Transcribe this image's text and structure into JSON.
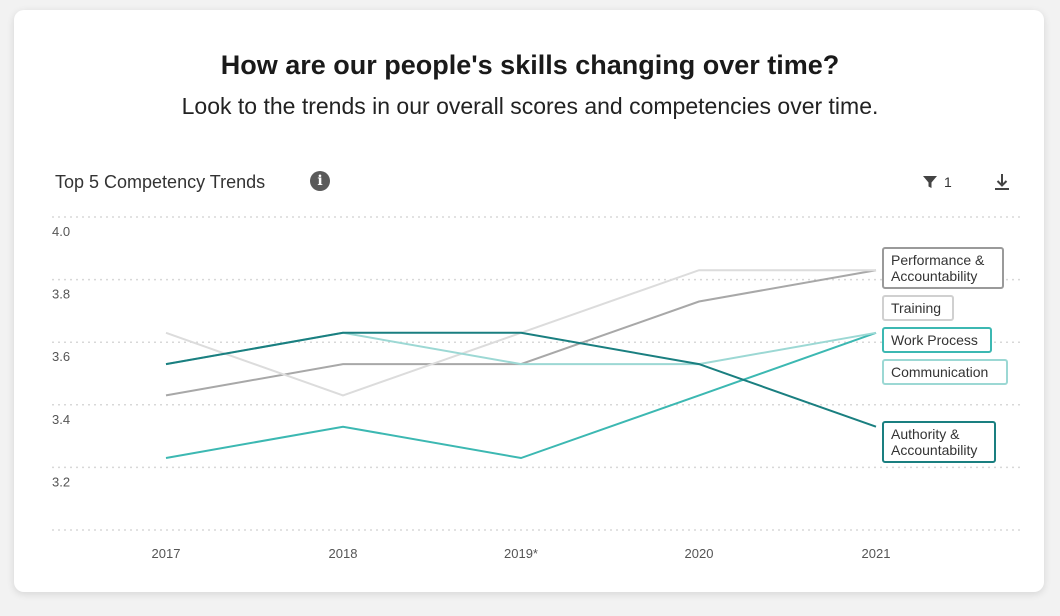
{
  "header": {
    "title": "How are our people's skills changing over time?",
    "subtitle": "Look to the trends in our overall scores and competencies over time."
  },
  "toolbar": {
    "chart_title": "Top 5 Competency Trends",
    "info_icon": "i",
    "filter_count": "1"
  },
  "icons": {
    "info": "info-icon",
    "filter": "filter-icon",
    "download": "download-icon"
  },
  "chart_data": {
    "type": "line",
    "x": [
      "2017",
      "2018",
      "2019*",
      "2020",
      "2021"
    ],
    "y_ticks": [
      "4.0",
      "3.8",
      "3.6",
      "3.4",
      "3.2"
    ],
    "ylim": [
      3.0,
      4.0
    ],
    "grid": true,
    "legend_position": "right",
    "series": [
      {
        "name": "Performance & Accountability",
        "lines": [
          "Performance &",
          "Accountability"
        ],
        "values": [
          3.43,
          3.53,
          3.53,
          3.73,
          3.83
        ],
        "color": "#a8a8a8",
        "border": "#9a9a9a"
      },
      {
        "name": "Training",
        "lines": [
          "Training"
        ],
        "values": [
          3.63,
          3.43,
          3.63,
          3.83,
          3.83
        ],
        "color": "#dcdcdc",
        "border": "#d0d0d0"
      },
      {
        "name": "Work Process",
        "lines": [
          "Work Process"
        ],
        "values": [
          3.23,
          3.33,
          3.23,
          3.43,
          3.63
        ],
        "color": "#3cb8b2",
        "border": "#3cb8b2"
      },
      {
        "name": "Communication",
        "lines": [
          "Communication"
        ],
        "values": [
          3.53,
          3.63,
          3.53,
          3.53,
          3.63
        ],
        "color": "#9cd8d4",
        "border": "#9cd8d4"
      },
      {
        "name": "Authority & Accountability",
        "lines": [
          "Authority &",
          "Accountability"
        ],
        "values": [
          3.53,
          3.63,
          3.63,
          3.53,
          3.33
        ],
        "color": "#1a7f80",
        "border": "#1a7f80"
      }
    ]
  }
}
